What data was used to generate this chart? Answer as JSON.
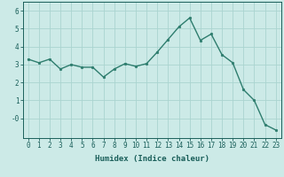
{
  "x": [
    0,
    1,
    2,
    3,
    4,
    5,
    6,
    7,
    8,
    9,
    10,
    11,
    12,
    13,
    14,
    15,
    16,
    17,
    18,
    19,
    20,
    21,
    22,
    23
  ],
  "y": [
    3.3,
    3.1,
    3.3,
    2.75,
    3.0,
    2.85,
    2.85,
    2.3,
    2.75,
    3.05,
    2.9,
    3.05,
    3.7,
    4.4,
    5.1,
    5.6,
    4.35,
    4.7,
    3.55,
    3.1,
    1.6,
    1.0,
    -0.35,
    -0.65
  ],
  "line_color": "#2e7d6e",
  "marker": "o",
  "markersize": 1.8,
  "linewidth": 1.0,
  "xlabel": "Humidex (Indice chaleur)",
  "xlim": [
    -0.5,
    23.5
  ],
  "ylim": [
    -1.1,
    6.5
  ],
  "yticks": [
    0,
    1,
    2,
    3,
    4,
    5,
    6
  ],
  "ytick_labels": [
    "-0",
    "1",
    "2",
    "3",
    "4",
    "5",
    "6"
  ],
  "xticks": [
    0,
    1,
    2,
    3,
    4,
    5,
    6,
    7,
    8,
    9,
    10,
    11,
    12,
    13,
    14,
    15,
    16,
    17,
    18,
    19,
    20,
    21,
    22,
    23
  ],
  "bg_color": "#cceae7",
  "grid_color": "#aad4d0",
  "tick_color": "#1a5f5a",
  "label_color": "#1a5f5a",
  "font_size_xlabel": 6.5,
  "font_size_ticks": 5.5
}
